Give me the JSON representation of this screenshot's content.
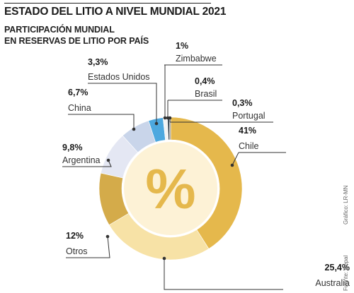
{
  "title": "ESTADO DEL LITIO A NIVEL MUNDIAL 2021",
  "subtitle_lines": [
    "PARTICIPACIÓN MUNDIAL",
    "EN RESERVAS DE LITIO POR PAÍS"
  ],
  "center_symbol": "%",
  "credits": {
    "source": "Fuente: Cepal",
    "graphic": "Gráfico: LR-MN"
  },
  "colors": {
    "ring_inner": "#fdf2d6",
    "pointer": "#333333",
    "center_symbol": "#e5b84c"
  },
  "chart_data": {
    "type": "pie",
    "donut": true,
    "title": "ESTADO DEL LITIO A NIVEL MUNDIAL 2021",
    "subtitle": "PARTICIPACIÓN MUNDIAL EN RESERVAS DE LITIO POR PAÍS",
    "unit": "%",
    "legend": "none",
    "slices": [
      {
        "name": "Chile",
        "value": 41,
        "label": "41%",
        "color": "#e5b84c"
      },
      {
        "name": "Australia",
        "value": 25.4,
        "label": "25,4%",
        "color": "#f7e2a6"
      },
      {
        "name": "Otros",
        "value": 12,
        "label": "12%",
        "color": "#d4ab4a"
      },
      {
        "name": "Argentina",
        "value": 9.8,
        "label": "9,8%",
        "color": "#e4e7f3"
      },
      {
        "name": "China",
        "value": 6.7,
        "label": "6,7%",
        "color": "#c9d5ea"
      },
      {
        "name": "Estados Unidos",
        "value": 3.3,
        "label": "3,3%",
        "color": "#4da8df"
      },
      {
        "name": "Zimbabwe",
        "value": 1,
        "label": "1%",
        "color": "#f3f3f3"
      },
      {
        "name": "Brasil",
        "value": 0.4,
        "label": "0,4%",
        "color": "#1f2d3a"
      },
      {
        "name": "Portugal",
        "value": 0.3,
        "label": "0,3%",
        "color": "#8a8a8a"
      }
    ]
  }
}
